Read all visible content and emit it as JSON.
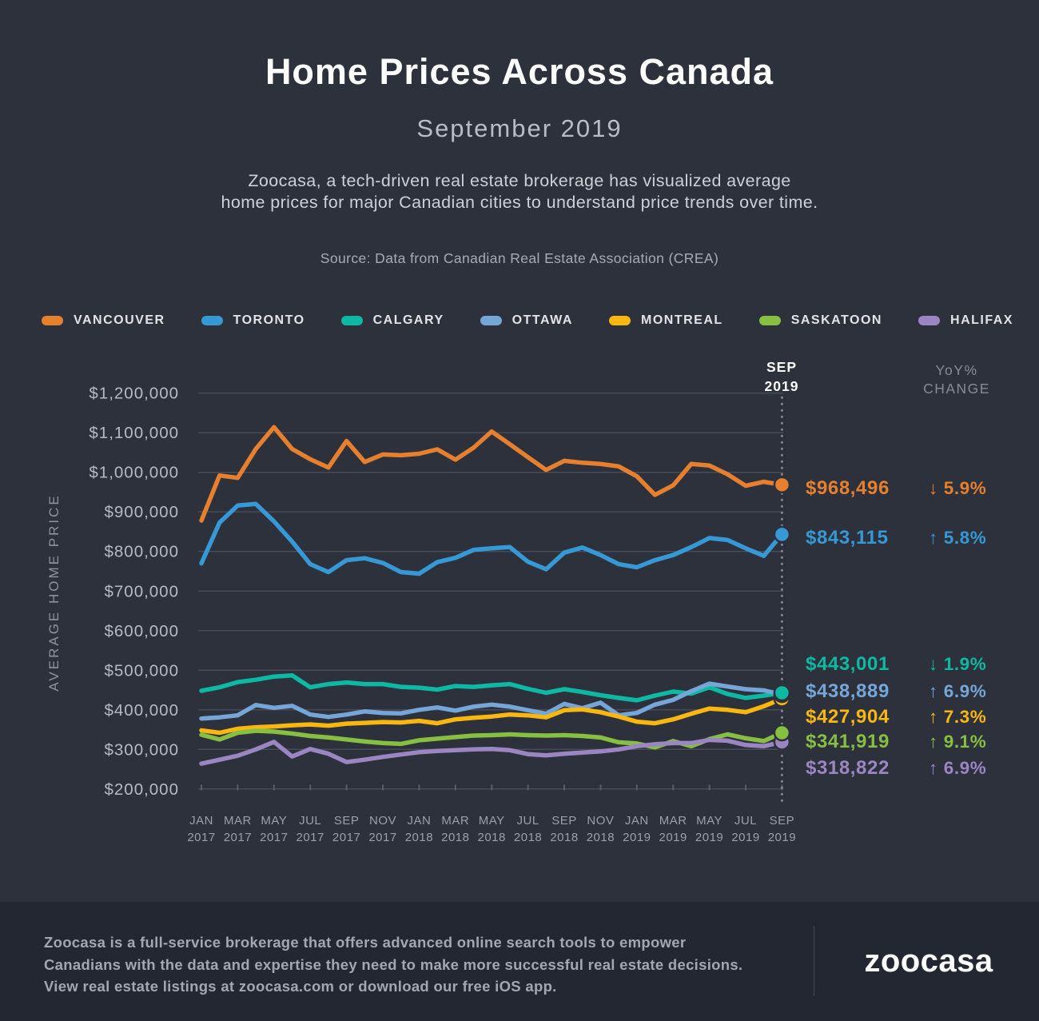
{
  "header": {
    "title": "Home Prices Across Canada",
    "subtitle": "September 2019",
    "description_line1": "Zoocasa, a tech-driven real estate brokerage has visualized average",
    "description_line2": "home prices for major Canadian cities to understand price trends over time.",
    "source": "Source: Data from Canadian Real Estate Association (CREA)"
  },
  "annotations": {
    "current_month_line1": "SEP",
    "current_month_line2": "2019",
    "yoy_header_line1": "YoY%",
    "yoy_header_line2": "CHANGE"
  },
  "chart_data": {
    "type": "line",
    "title": "Home Prices Across Canada - September 2019",
    "ylabel": "AVERAGE HOME PRICE",
    "grid": true,
    "y_axis": {
      "min": 200000,
      "max": 1200000,
      "step": 100000,
      "tick_format": "$#,##0"
    },
    "x_axis": {
      "tick_every": 2,
      "months": [
        "JAN 2017",
        "FEB 2017",
        "MAR 2017",
        "APR 2017",
        "MAY 2017",
        "JUN 2017",
        "JUL 2017",
        "AUG 2017",
        "SEP 2017",
        "OCT 2017",
        "NOV 2017",
        "DEC 2017",
        "JAN 2018",
        "FEB 2018",
        "MAR 2018",
        "APR 2018",
        "MAY 2018",
        "JUN 2018",
        "JUL 2018",
        "AUG 2018",
        "SEP 2018",
        "OCT 2018",
        "NOV 2018",
        "DEC 2018",
        "JAN 2019",
        "FEB 2019",
        "MAR 2019",
        "APR 2019",
        "MAY 2019",
        "JUN 2019",
        "JUL 2019",
        "AUG 2019",
        "SEP 2019"
      ]
    },
    "ui_colors": {
      "background": "#2d313c",
      "grid_line": "#474b57",
      "axis_tick": "#5a5e6a",
      "dotted_line": "#8b909b",
      "y_tick_text": "#b6bac4",
      "x_tick_text": "#9aa0ab"
    },
    "series": [
      {
        "name": "VANCOUVER",
        "color": "#e6802e",
        "end_label": "$968,496",
        "yoy": {
          "direction": "down",
          "percent": "5.9%"
        },
        "values": [
          878000,
          992000,
          986000,
          1059000,
          1114000,
          1059000,
          1033000,
          1012000,
          1079000,
          1026000,
          1045000,
          1043000,
          1047000,
          1058000,
          1032000,
          1062000,
          1103000,
          1071000,
          1038000,
          1006000,
          1029000,
          1024000,
          1021000,
          1015000,
          990000,
          943000,
          967000,
          1021000,
          1017000,
          995000,
          966000,
          976000,
          968496
        ]
      },
      {
        "name": "TORONTO",
        "color": "#3798d6",
        "end_label": "$843,115",
        "yoy": {
          "direction": "up",
          "percent": "5.8%"
        },
        "values": [
          770000,
          873000,
          916000,
          920000,
          876000,
          825000,
          768000,
          748000,
          778000,
          783000,
          771000,
          748000,
          744000,
          773000,
          784000,
          804000,
          808000,
          811000,
          774000,
          755000,
          797000,
          810000,
          791000,
          768000,
          760000,
          778000,
          791000,
          811000,
          834000,
          829000,
          808000,
          789000,
          843115
        ]
      },
      {
        "name": "CALGARY",
        "color": "#0db9a3",
        "end_label": "$443,001",
        "yoy": {
          "direction": "down",
          "percent": "1.9%"
        },
        "values": [
          448000,
          457000,
          470000,
          476000,
          484000,
          487000,
          457000,
          465000,
          469000,
          465000,
          465000,
          458000,
          456000,
          451000,
          460000,
          458000,
          462000,
          465000,
          453000,
          443000,
          452000,
          445000,
          437000,
          430000,
          424000,
          436000,
          446000,
          441000,
          457000,
          440000,
          430000,
          436000,
          443001
        ]
      },
      {
        "name": "OTTAWA",
        "color": "#76a6d8",
        "end_label": "$438,889",
        "yoy": {
          "direction": "up",
          "percent": "6.9%"
        },
        "values": [
          378000,
          381000,
          386000,
          412000,
          405000,
          410000,
          388000,
          382000,
          388000,
          396000,
          392000,
          391000,
          400000,
          406000,
          398000,
          408000,
          413000,
          408000,
          399000,
          390000,
          415000,
          404000,
          418000,
          386000,
          392000,
          413000,
          425000,
          447000,
          466000,
          459000,
          452000,
          449000,
          438889
        ]
      },
      {
        "name": "MONTREAL",
        "color": "#f9b710",
        "end_label": "$427,904",
        "yoy": {
          "direction": "up",
          "percent": "7.3%"
        },
        "values": [
          348000,
          342000,
          352000,
          356000,
          358000,
          361000,
          363000,
          360000,
          365000,
          367000,
          369000,
          368000,
          372000,
          366000,
          376000,
          380000,
          383000,
          388000,
          386000,
          381000,
          399000,
          401000,
          394000,
          383000,
          370000,
          366000,
          376000,
          390000,
          403000,
          400000,
          394000,
          409000,
          427904
        ]
      },
      {
        "name": "SASKATOON",
        "color": "#87bf42",
        "end_label": "$341,919",
        "yoy": {
          "direction": "up",
          "percent": "9.1%"
        },
        "values": [
          337000,
          325000,
          342000,
          347000,
          345000,
          340000,
          334000,
          330000,
          325000,
          320000,
          316000,
          314000,
          323000,
          327000,
          331000,
          335000,
          336000,
          338000,
          336000,
          335000,
          336000,
          334000,
          330000,
          318000,
          315000,
          305000,
          321000,
          308000,
          326000,
          338000,
          328000,
          321000,
          341919
        ]
      },
      {
        "name": "HALIFAX",
        "color": "#9c85c3",
        "end_label": "$318,822",
        "yoy": {
          "direction": "up",
          "percent": "6.9%"
        },
        "values": [
          264000,
          274000,
          284000,
          300000,
          319000,
          282000,
          301000,
          289000,
          268000,
          274000,
          281000,
          287000,
          293000,
          296000,
          298000,
          300000,
          301000,
          298000,
          288000,
          285000,
          289000,
          292000,
          295000,
          300000,
          308000,
          313000,
          316000,
          316000,
          324000,
          322000,
          311000,
          308000,
          318822
        ]
      }
    ]
  },
  "footer": {
    "line1": "Zoocasa is a full-service brokerage that offers advanced online search tools to empower",
    "line2": "Canadians with the data and expertise they need to make more successful real estate decisions.",
    "line3": "View real estate listings at zoocasa.com or download our free iOS app.",
    "logo_text": "zoocasa"
  }
}
